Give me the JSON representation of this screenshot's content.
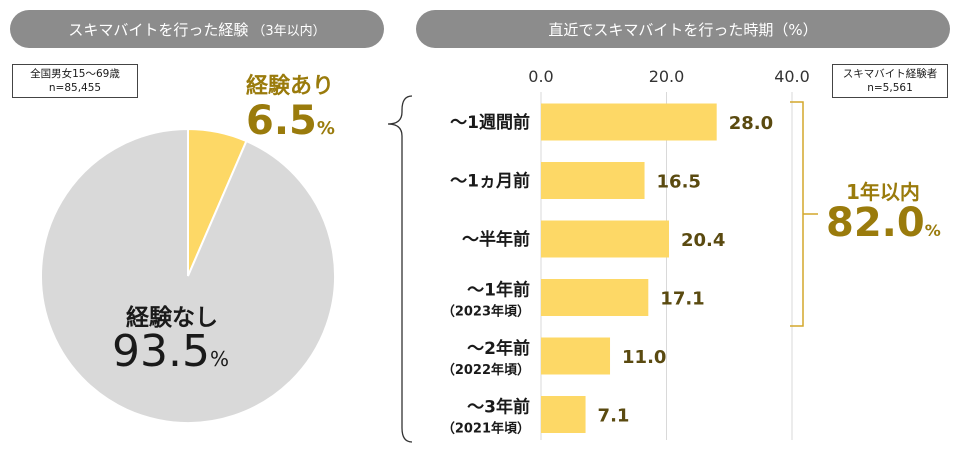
{
  "left_panel": {
    "title": "スキマバイトを行った経験",
    "title_note": "（3年以内）",
    "sample_note": {
      "line1": "全国男女15～69歳",
      "line2": "n=85,455"
    },
    "yes_label": "経験あり",
    "yes_value": "6.5",
    "no_label": "経験なし",
    "no_value": "93.5",
    "percent_sign": "%"
  },
  "right_panel": {
    "title": "直近でスキマバイトを行った時期（%）",
    "sample_note": {
      "line1": "スキマバイト経験者",
      "line2": "n=5,561"
    },
    "bracket_label": "1年以内",
    "bracket_value": "82.0",
    "percent_sign": "%"
  },
  "colors": {
    "pie_yes": "#fdd866",
    "pie_no": "#d9d9d9",
    "bar": "#fdd866",
    "pill": "#8c8c8c",
    "gold_text": "#9a7b0c"
  },
  "chart_data": [
    {
      "type": "pie",
      "title": "スキマバイトを行った経験（3年以内）",
      "slices": [
        {
          "label": "経験あり",
          "value": 6.5
        },
        {
          "label": "経験なし",
          "value": 93.5
        }
      ]
    },
    {
      "type": "bar",
      "orientation": "horizontal",
      "title": "直近でスキマバイトを行った時期（%）",
      "categories": [
        {
          "label": "～1週間前",
          "sub": ""
        },
        {
          "label": "～1ヵ月前",
          "sub": ""
        },
        {
          "label": "～半年前",
          "sub": ""
        },
        {
          "label": "～1年前",
          "sub": "（2023年頃）"
        },
        {
          "label": "～2年前",
          "sub": "（2022年頃）"
        },
        {
          "label": "～3年前",
          "sub": "（2021年頃）"
        }
      ],
      "values": [
        28.0,
        16.5,
        20.4,
        17.1,
        11.0,
        7.1
      ],
      "value_labels": [
        "28.0",
        "16.5",
        "20.4",
        "17.1",
        "11.0",
        "7.1"
      ],
      "xlim": [
        0,
        40
      ],
      "ticks": [
        "0.0",
        "20.0",
        "40.0"
      ],
      "grid": true
    }
  ]
}
